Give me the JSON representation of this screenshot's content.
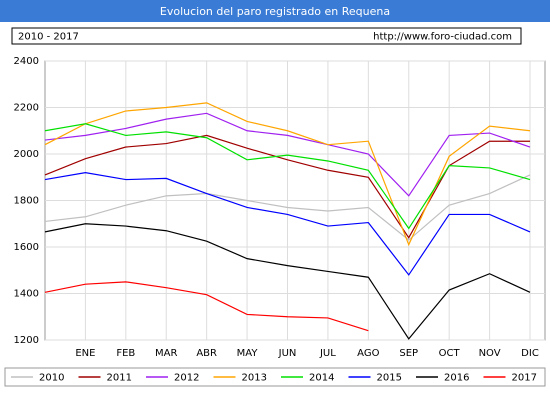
{
  "chart_data": {
    "type": "line",
    "title": "Evolucion del paro registrado en Requena",
    "subtitle_left": "2010 - 2017",
    "subtitle_right": "http://www.foro-ciudad.com",
    "categories": [
      null,
      "ENE",
      "FEB",
      "MAR",
      "ABR",
      "MAY",
      "JUN",
      "JUL",
      "AGO",
      "SEP",
      "OCT",
      "NOV",
      "DIC"
    ],
    "ylim": [
      1200,
      2400
    ],
    "yticks": [
      1200,
      1400,
      1600,
      1800,
      2000,
      2200,
      2400
    ],
    "grid": true,
    "legend": "bottom",
    "series": [
      {
        "name": "2010",
        "color": "#c0c0c0",
        "values": [
          1710,
          1730,
          1780,
          1820,
          1830,
          1800,
          1770,
          1755,
          1770,
          1630,
          1780,
          1830,
          1910
        ]
      },
      {
        "name": "2011",
        "color": "#a00000",
        "values": [
          1910,
          1980,
          2030,
          2045,
          2080,
          2025,
          1975,
          1930,
          1900,
          1640,
          1950,
          2055,
          2055
        ]
      },
      {
        "name": "2012",
        "color": "#a020f0",
        "values": [
          2060,
          2080,
          2110,
          2150,
          2175,
          2100,
          2080,
          2040,
          2000,
          1820,
          2080,
          2090,
          2030
        ]
      },
      {
        "name": "2013",
        "color": "#ffa500",
        "values": [
          2040,
          2130,
          2185,
          2200,
          2220,
          2140,
          2100,
          2040,
          2055,
          1610,
          1990,
          2120,
          2100
        ]
      },
      {
        "name": "2014",
        "color": "#00e000",
        "values": [
          2100,
          2130,
          2080,
          2095,
          2070,
          1975,
          1995,
          1970,
          1930,
          1680,
          1950,
          1940,
          1890
        ]
      },
      {
        "name": "2015",
        "color": "#0000ff",
        "values": [
          1890,
          1920,
          1890,
          1895,
          1830,
          1770,
          1740,
          1690,
          1705,
          1480,
          1740,
          1740,
          1665
        ]
      },
      {
        "name": "2016",
        "color": "#000000",
        "values": [
          1665,
          1700,
          1690,
          1670,
          1625,
          1550,
          1520,
          1495,
          1470,
          1205,
          1415,
          1485,
          1405
        ]
      },
      {
        "name": "2017",
        "color": "#ff0000",
        "values": [
          1405,
          1440,
          1450,
          1425,
          1395,
          1310,
          1300,
          1295,
          1240,
          null,
          null,
          null,
          null
        ]
      }
    ]
  }
}
